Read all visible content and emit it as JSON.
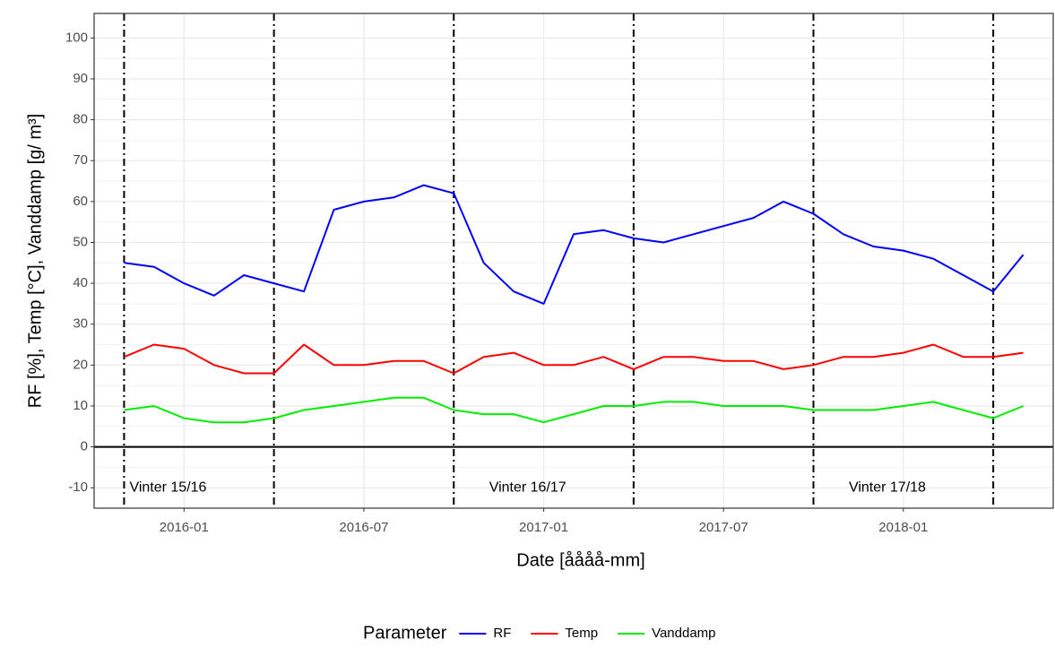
{
  "chart_data": {
    "type": "line",
    "xlabel": "Date [åååå-mm]",
    "ylabel": "RF [%], Temp [°C], Vanddamp [g/ m³]",
    "x": [
      "2015-11",
      "2015-12",
      "2016-01",
      "2016-02",
      "2016-03",
      "2016-04",
      "2016-05",
      "2016-06",
      "2016-07",
      "2016-08",
      "2016-09",
      "2016-10",
      "2016-11",
      "2016-12",
      "2017-01",
      "2017-02",
      "2017-03",
      "2017-04",
      "2017-05",
      "2017-06",
      "2017-07",
      "2017-08",
      "2017-09",
      "2017-10",
      "2017-11",
      "2017-12",
      "2018-01",
      "2018-02",
      "2018-03",
      "2018-04",
      "2018-05"
    ],
    "series": [
      {
        "name": "RF",
        "color": "#0000ff",
        "values": [
          45,
          44,
          40,
          37,
          42,
          40,
          38,
          58,
          60,
          61,
          64,
          62,
          45,
          38,
          35,
          52,
          53,
          51,
          50,
          52,
          54,
          56,
          60,
          57,
          52,
          49,
          48,
          46,
          42,
          38,
          47
        ]
      },
      {
        "name": "Temp",
        "color": "#ff0000",
        "values": [
          22,
          25,
          24,
          20,
          18,
          18,
          25,
          20,
          20,
          21,
          21,
          18,
          22,
          23,
          20,
          20,
          22,
          19,
          22,
          22,
          21,
          21,
          19,
          20,
          22,
          22,
          23,
          25,
          22,
          22,
          23
        ]
      },
      {
        "name": "Vanddamp",
        "color": "#00ee00",
        "values": [
          9,
          10,
          7,
          6,
          6,
          7,
          9,
          10,
          11,
          12,
          12,
          9,
          8,
          8,
          6,
          8,
          10,
          10,
          11,
          11,
          10,
          10,
          10,
          9,
          9,
          9,
          10,
          11,
          9,
          7,
          10
        ]
      }
    ],
    "xlim": [
      "2015-10",
      "2018-06"
    ],
    "xticks": [
      "2016-01",
      "2016-07",
      "2017-01",
      "2017-07",
      "2018-01"
    ],
    "ylim": [
      -15,
      106
    ],
    "yticks": [
      -10,
      0,
      10,
      20,
      30,
      40,
      50,
      60,
      70,
      80,
      90,
      100
    ],
    "grid": true,
    "hline": 0,
    "vlines": [
      "2015-11",
      "2016-04",
      "2016-10",
      "2017-04",
      "2017-10",
      "2018-04"
    ],
    "annotations": [
      {
        "text": "Vinter 15/16",
        "x": "2015-11"
      },
      {
        "text": "Vinter 16/17",
        "x": "2016-11"
      },
      {
        "text": "Vinter 17/18",
        "x": "2017-11"
      }
    ],
    "legend_title": "Parameter",
    "legend": "bottom"
  }
}
